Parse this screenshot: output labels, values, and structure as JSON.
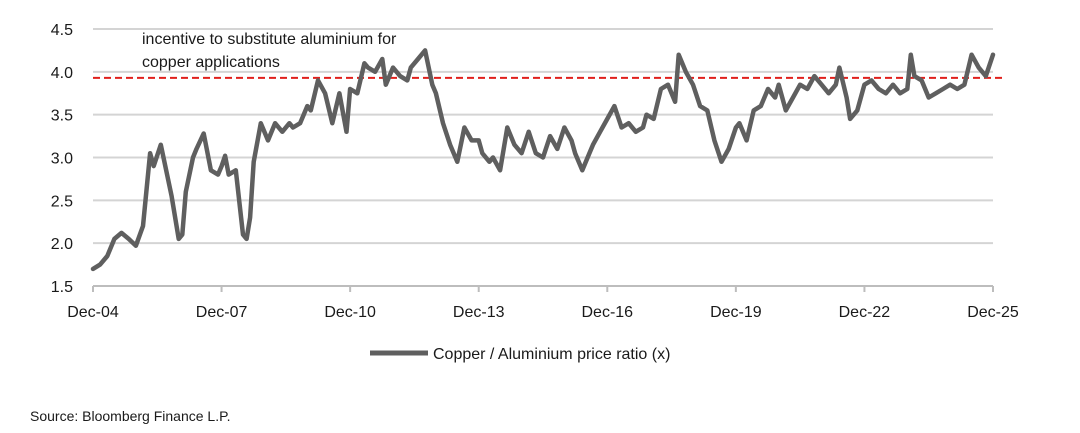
{
  "chart_data": {
    "type": "line",
    "ylim": [
      1.5,
      4.5
    ],
    "yticks": [
      "1.5",
      "2.0",
      "2.5",
      "3.0",
      "3.5",
      "4.0",
      "4.5"
    ],
    "xticks": [
      "Dec-04",
      "Dec-07",
      "Dec-10",
      "Dec-13",
      "Dec-16",
      "Dec-19",
      "Dec-22",
      "Dec-25"
    ],
    "grid": "horizontal",
    "threshold": 3.93,
    "threshold_color": "#e0201c",
    "series_color": "#5f5f5f",
    "annotation": [
      "incentive to substitute aluminium for",
      "copper applications"
    ],
    "legend": "Copper / Aluminium price ratio (x)",
    "legend_position": "bottom",
    "series": [
      {
        "name": "Copper / Aluminium price ratio (x)",
        "x": [
          2004.917,
          2005.083,
          2005.25,
          2005.417,
          2005.583,
          2005.75,
          2005.917,
          2006.083,
          2006.25,
          2006.333,
          2006.5,
          2006.583,
          2006.75,
          2006.917,
          2007.0,
          2007.083,
          2007.25,
          2007.333,
          2007.5,
          2007.667,
          2007.833,
          2007.917,
          2008.0,
          2008.083,
          2008.25,
          2008.417,
          2008.5,
          2008.583,
          2008.667,
          2008.833,
          2009.0,
          2009.167,
          2009.333,
          2009.5,
          2009.583,
          2009.75,
          2009.917,
          2010.0,
          2010.167,
          2010.333,
          2010.5,
          2010.667,
          2010.833,
          2010.917,
          2011.083,
          2011.25,
          2011.333,
          2011.5,
          2011.667,
          2011.75,
          2011.917,
          2012.083,
          2012.25,
          2012.333,
          2012.5,
          2012.667,
          2012.833,
          2012.917,
          2013.083,
          2013.25,
          2013.417,
          2013.583,
          2013.75,
          2013.917,
          2014.0,
          2014.167,
          2014.25,
          2014.417,
          2014.583,
          2014.75,
          2014.917,
          2015.083,
          2015.25,
          2015.417,
          2015.583,
          2015.75,
          2015.917,
          2016.083,
          2016.167,
          2016.333,
          2016.5,
          2016.583,
          2016.75,
          2016.917,
          2017.083,
          2017.25,
          2017.417,
          2017.583,
          2017.75,
          2017.833,
          2018.0,
          2018.167,
          2018.333,
          2018.5,
          2018.583,
          2018.75,
          2018.917,
          2019.083,
          2019.25,
          2019.417,
          2019.583,
          2019.75,
          2019.917,
          2020.0,
          2020.167,
          2020.333,
          2020.5,
          2020.667,
          2020.833,
          2020.917,
          2021.083,
          2021.25,
          2021.417,
          2021.583,
          2021.75,
          2021.917,
          2022.083,
          2022.25,
          2022.333,
          2022.5,
          2022.583,
          2022.75,
          2022.917,
          2023.083,
          2023.25,
          2023.417,
          2023.583,
          2023.75,
          2023.917,
          2024.0,
          2024.083,
          2024.25,
          2024.417,
          2024.583,
          2024.75,
          2024.917,
          2025.083,
          2025.25,
          2025.417,
          2025.583,
          2025.75,
          2025.917
        ],
        "values": [
          1.7,
          1.75,
          1.85,
          2.05,
          2.12,
          2.05,
          1.97,
          2.2,
          3.05,
          2.9,
          3.15,
          2.95,
          2.55,
          2.05,
          2.1,
          2.6,
          3.0,
          3.1,
          3.28,
          2.85,
          2.8,
          2.9,
          3.02,
          2.8,
          2.85,
          2.1,
          2.05,
          2.3,
          2.95,
          3.4,
          3.2,
          3.4,
          3.3,
          3.4,
          3.35,
          3.4,
          3.6,
          3.55,
          3.9,
          3.75,
          3.4,
          3.75,
          3.3,
          3.8,
          3.75,
          4.1,
          4.05,
          4.0,
          4.15,
          3.85,
          4.05,
          3.95,
          3.9,
          4.05,
          4.15,
          4.25,
          3.85,
          3.75,
          3.4,
          3.15,
          2.95,
          3.35,
          3.2,
          3.2,
          3.05,
          2.95,
          3.0,
          2.85,
          3.35,
          3.15,
          3.05,
          3.3,
          3.05,
          3.0,
          3.25,
          3.1,
          3.35,
          3.2,
          3.05,
          2.85,
          3.05,
          3.15,
          3.3,
          3.45,
          3.6,
          3.35,
          3.4,
          3.3,
          3.35,
          3.5,
          3.45,
          3.8,
          3.85,
          3.65,
          4.2,
          4.0,
          3.85,
          3.6,
          3.55,
          3.2,
          2.95,
          3.1,
          3.35,
          3.4,
          3.2,
          3.55,
          3.6,
          3.8,
          3.7,
          3.85,
          3.55,
          3.7,
          3.85,
          3.8,
          3.95,
          3.85,
          3.75,
          3.85,
          4.05,
          3.7,
          3.45,
          3.55,
          3.85,
          3.9,
          3.8,
          3.75,
          3.85,
          3.75,
          3.8,
          4.2,
          3.95,
          3.9,
          3.7,
          3.75,
          3.8,
          3.85,
          3.8,
          3.85,
          4.2,
          4.05,
          3.95,
          4.2
        ]
      }
    ]
  },
  "footer": {
    "source": "Source: Bloomberg Finance L.P."
  }
}
